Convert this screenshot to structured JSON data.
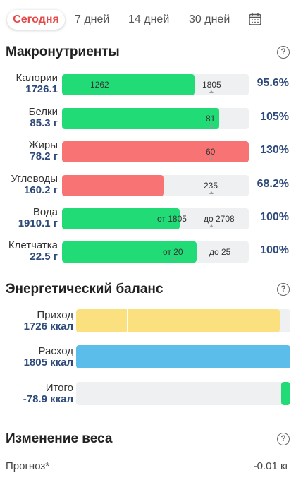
{
  "tabs": [
    {
      "label": "Сегодня",
      "active": true
    },
    {
      "label": "7 дней"
    },
    {
      "label": "14 дней"
    },
    {
      "label": "30 дней"
    }
  ],
  "macros": {
    "title": "Макронутриенты",
    "rows": [
      {
        "name": "Калории",
        "value": "1726.1",
        "percent": "95.6%",
        "color": "#21dc76",
        "fill_fraction": 0.71,
        "labels": [
          {
            "text": "1262",
            "pos": 0.15
          },
          {
            "text": "1805",
            "pos": 0.75
          }
        ],
        "tick": 0.8
      },
      {
        "name": "Белки",
        "value": "85.3 г",
        "percent": "105%",
        "color": "#21dc76",
        "fill_fraction": 0.84,
        "labels": [
          {
            "text": "81",
            "pos": 0.77
          }
        ],
        "tick": 0.8
      },
      {
        "name": "Жиры",
        "value": "78.2 г",
        "percent": "130%",
        "color": "#f87474",
        "fill_fraction": 1.0,
        "labels": [
          {
            "text": "60",
            "pos": 0.77
          }
        ],
        "tick": 0.8
      },
      {
        "name": "Углеводы",
        "value": "160.2 г",
        "percent": "68.2%",
        "color": "#f87474",
        "fill_fraction": 0.545,
        "labels": [
          {
            "text": "235",
            "pos": 0.76
          }
        ],
        "tick": 0.8
      },
      {
        "name": "Вода",
        "value": "1910.1 г",
        "percent": "100%",
        "color": "#21dc76",
        "fill_fraction": 0.63,
        "labels": [
          {
            "text": "от 1805",
            "pos": 0.51
          },
          {
            "text": "до 2708",
            "pos": 0.76
          }
        ],
        "tick": 0.8
      },
      {
        "name": "Клетчатка",
        "value": "22.5 г",
        "percent": "100%",
        "color": "#21dc76",
        "fill_fraction": 0.72,
        "labels": [
          {
            "text": "от 20",
            "pos": 0.54
          },
          {
            "text": "до 25",
            "pos": 0.79
          }
        ],
        "tick": 0.6
      }
    ]
  },
  "energy": {
    "title": "Энергетический баланс",
    "rows": [
      {
        "name": "Приход",
        "value": "1726 ккал",
        "color": "#fbe07f",
        "fill_fraction": 0.95,
        "segments": [
          0.25,
          0.58,
          0.92
        ],
        "align": "left"
      },
      {
        "name": "Расход",
        "value": "1805 ккал",
        "color": "#5bbde9",
        "fill_fraction": 1.0,
        "segments": [],
        "align": "left"
      },
      {
        "name": "Итого",
        "value": "-78.9 ккал",
        "color": "#21dc76",
        "fill_fraction": 0.043,
        "segments": [],
        "align": "right"
      }
    ]
  },
  "weight": {
    "title": "Изменение веса",
    "forecast_label": "Прогноз*",
    "forecast_value": "-0.01 кг"
  },
  "help_symbol": "?",
  "icons": {
    "calendar": "calendar-icon",
    "help": "help-circle-icon"
  }
}
